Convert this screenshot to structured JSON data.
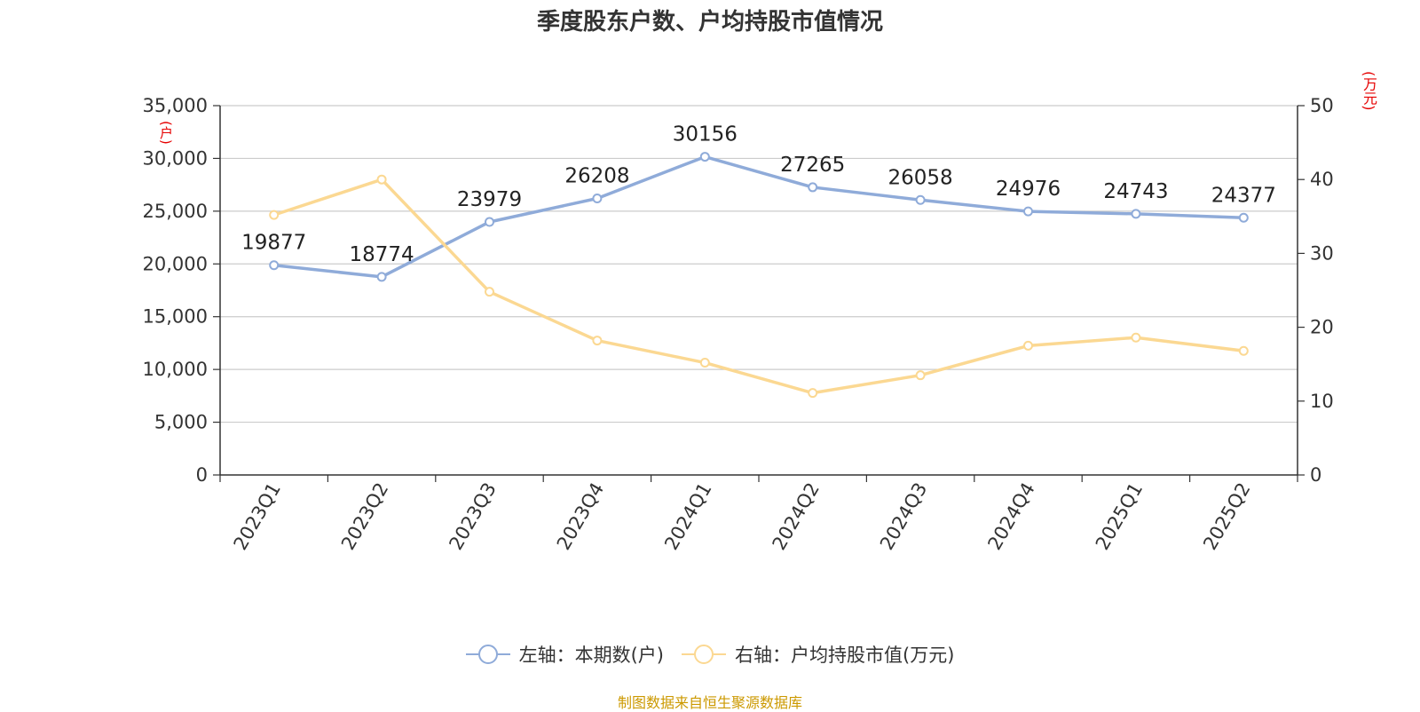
{
  "title": "季度股东户数、户均持股市值情况",
  "unit_left": "(户)",
  "unit_right": "(万元)",
  "source": "制图数据来自恒生聚源数据库",
  "colors": {
    "left_series": "#8fabd9",
    "right_series": "#fbd892",
    "unit_text": "#e60000",
    "source_text": "#cc9900"
  },
  "chart_data": {
    "type": "line",
    "title": "季度股东户数、户均持股市值情况",
    "categories": [
      "2023Q1",
      "2023Q2",
      "2023Q3",
      "2023Q4",
      "2024Q1",
      "2024Q2",
      "2024Q3",
      "2024Q4",
      "2025Q1",
      "2025Q2"
    ],
    "y_left": {
      "label": "(户)",
      "ylim": [
        0,
        35000
      ],
      "ticks": [
        0,
        5000,
        10000,
        15000,
        20000,
        25000,
        30000,
        35000
      ],
      "tick_labels": [
        "0",
        "5,000",
        "10,000",
        "15,000",
        "20,000",
        "25,000",
        "30,000",
        "35,000"
      ]
    },
    "y_right": {
      "label": "(万元)",
      "ylim": [
        0,
        50
      ],
      "ticks": [
        0,
        10,
        20,
        30,
        40,
        50
      ],
      "tick_labels": [
        "0",
        "10",
        "20",
        "30",
        "40",
        "50"
      ]
    },
    "grid": true,
    "legend_position": "bottom",
    "series": [
      {
        "name": "左轴：本期数(户)",
        "axis": "left",
        "color": "#8fabd9",
        "values": [
          19877,
          18774,
          23979,
          26208,
          30156,
          27265,
          26058,
          24976,
          24743,
          24377
        ],
        "labels": [
          "19877",
          "18774",
          "23979",
          "26208",
          "30156",
          "27265",
          "26058",
          "24976",
          "24743",
          "24377"
        ]
      },
      {
        "name": "右轴：户均持股市值(万元)",
        "axis": "right",
        "color": "#fbd892",
        "values": [
          35.2,
          40.0,
          24.8,
          18.2,
          15.2,
          11.1,
          13.5,
          17.5,
          18.6,
          16.8
        ]
      }
    ]
  }
}
